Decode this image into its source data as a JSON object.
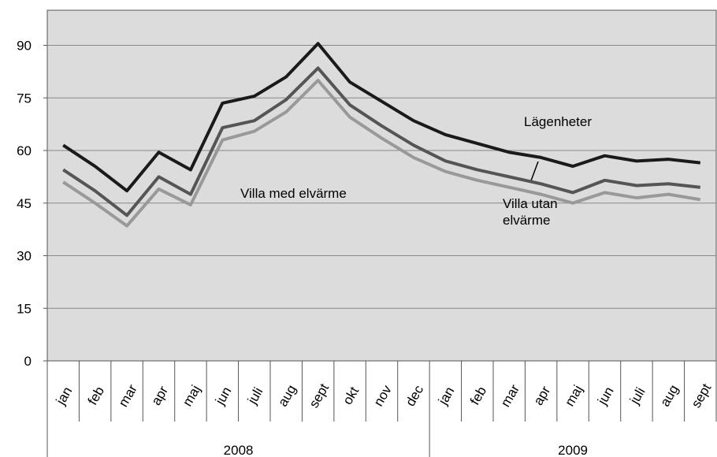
{
  "chart_data": {
    "type": "line",
    "groups": [
      {
        "name": "2008",
        "categories": [
          "jan",
          "feb",
          "mar",
          "apr",
          "maj",
          "jun",
          "juli",
          "aug",
          "sept",
          "okt",
          "nov",
          "dec"
        ]
      },
      {
        "name": "2009",
        "categories": [
          "jan",
          "feb",
          "mar",
          "apr",
          "maj",
          "jun",
          "juli",
          "aug",
          "sept"
        ]
      }
    ],
    "series": [
      {
        "name": "Lägenheter",
        "color": "#1a1a1a",
        "values": [
          61.5,
          55.5,
          48.5,
          59.5,
          54.5,
          73.5,
          75.5,
          81,
          90.5,
          79.5,
          74,
          68.5,
          64.5,
          62,
          59.5,
          58,
          55.5,
          58.5,
          57,
          57.5,
          56.5
        ]
      },
      {
        "name": "Villa utan elvärme",
        "color": "#555555",
        "values": [
          54.5,
          48.5,
          41.5,
          52.5,
          47.5,
          66.5,
          68.5,
          74.5,
          83.5,
          73,
          67,
          61.5,
          57,
          54.5,
          52.5,
          50.5,
          48,
          51.5,
          50,
          50.5,
          49.5
        ]
      },
      {
        "name": "Villa med elvärme",
        "color": "#999999",
        "values": [
          51,
          45,
          38.5,
          49,
          44.5,
          63,
          65.5,
          71,
          80,
          69.5,
          63.5,
          58,
          54,
          51.5,
          49.5,
          47.5,
          45,
          48,
          46.5,
          47.5,
          46
        ]
      }
    ],
    "ylim": [
      0,
      100
    ],
    "yticks": [
      0,
      15,
      30,
      45,
      60,
      75,
      90
    ],
    "grid": true
  }
}
